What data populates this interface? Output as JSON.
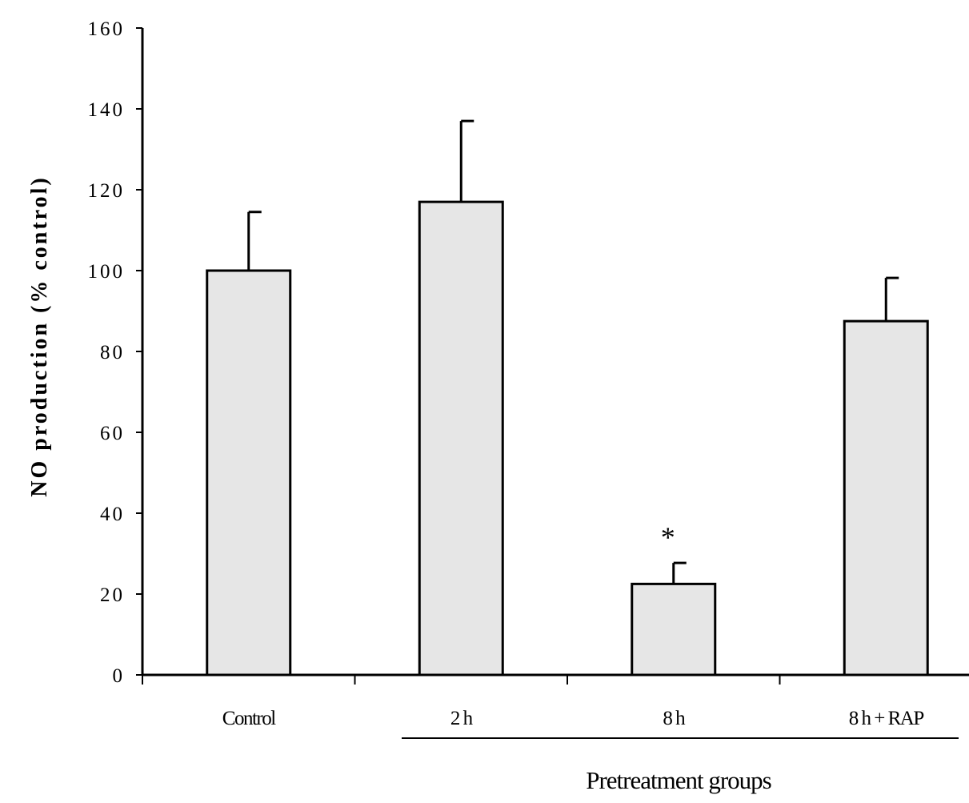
{
  "chart_data": {
    "type": "bar",
    "categories": [
      "Control",
      "2 h",
      "8 h",
      "8 h + RAP"
    ],
    "values": [
      100,
      117,
      22.5,
      87.5
    ],
    "errors": [
      14.5,
      20,
      5.2,
      10.7
    ],
    "annotations": [
      {
        "category": "8 h",
        "text": "*"
      }
    ],
    "title": "",
    "xlabel": "Pretreatment groups",
    "ylabel": "NO production (% control)",
    "ylim": [
      0,
      160
    ],
    "yticks": [
      0,
      20,
      40,
      60,
      80,
      100,
      120,
      140,
      160
    ],
    "grid": false,
    "legend": "none",
    "colors": {
      "bar_fill": "#e6e6e6",
      "bar_stroke": "#000000",
      "axis": "#000000"
    }
  }
}
